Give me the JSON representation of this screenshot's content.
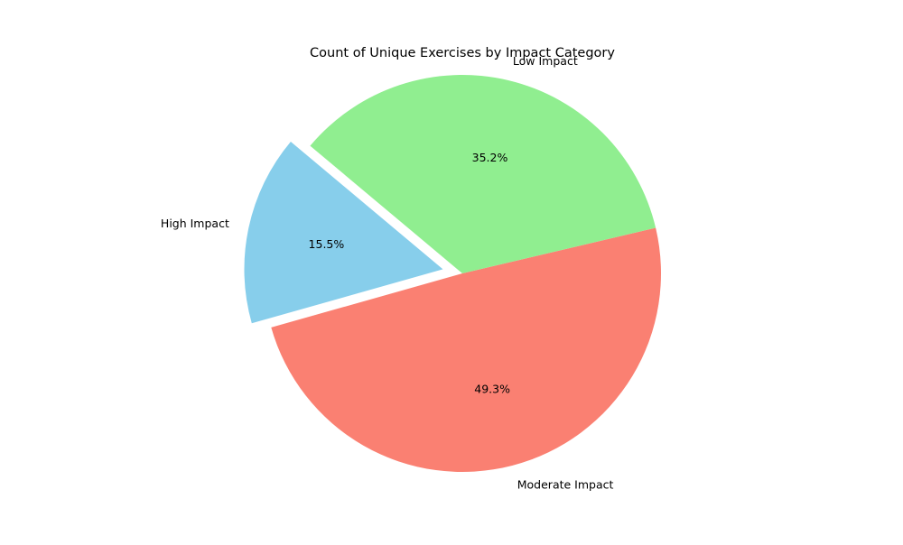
{
  "chart_data": {
    "type": "pie",
    "title": "Count of Unique Exercises by Impact Category",
    "slices": [
      {
        "label": "High Impact",
        "percent": 15.5,
        "percent_label": "15.5%",
        "color": "#87CEEB",
        "exploded": true
      },
      {
        "label": "Moderate Impact",
        "percent": 49.3,
        "percent_label": "49.3%",
        "color": "#FA8072",
        "exploded": false
      },
      {
        "label": "Low Impact",
        "percent": 35.2,
        "percent_label": "35.2%",
        "color": "#90EE90",
        "exploded": false
      }
    ],
    "start_angle_deg": 140,
    "direction": "counterclockwise",
    "legend": "none"
  }
}
